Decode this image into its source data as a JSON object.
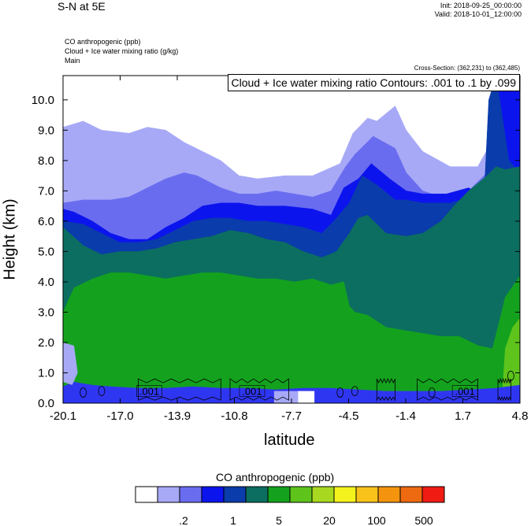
{
  "header": {
    "title": "S-N at 5E",
    "init": "Init: 2018-09-25_00:00:00",
    "valid": "Valid: 2018-10-01_12:00:00",
    "field1": "CO anthropogenic   (ppb)",
    "field2": "Cloud + Ice water mixing ratio   (g/kg)",
    "field3": "Main",
    "cross_section": "Cross-Section: (362,231) to (362,485)"
  },
  "chart_data": {
    "type": "heatmap",
    "contour_title": "Cloud + Ice water mixing ratio Contours: .001 to .1 by .099",
    "xlabel": "latitude",
    "ylabel": "Height (km)",
    "x_ticks": [
      "-20.1",
      "-17.0",
      "-13.9",
      "-10.8",
      "-7.7",
      "-4.5",
      "-1.4",
      "1.7",
      "4.8"
    ],
    "xlim": [
      -20.1,
      4.8
    ],
    "y_ticks": [
      "0.0",
      "1.0",
      "2.0",
      "3.0",
      "4.0",
      "5.0",
      "6.0",
      "7.0",
      "8.0",
      "9.0",
      "10.0"
    ],
    "ylim": [
      0,
      10.8
    ],
    "contour_labels": [
      {
        "x": -15.4,
        "y": 0.4,
        "text": ".001"
      },
      {
        "x": -9.8,
        "y": 0.4,
        "text": ".001"
      },
      {
        "x": 1.8,
        "y": 0.4,
        "text": ".001"
      }
    ],
    "levels_ppb": [
      {
        "name": "white",
        "color": "#ffffff",
        "top": [
          [
            -20.1,
            10.8
          ],
          [
            4.8,
            10.8
          ]
        ]
      },
      {
        "name": "pale-lavender",
        "color": "#a7a9f7",
        "top": [
          [
            -20.1,
            9.1
          ],
          [
            -19.0,
            9.3
          ],
          [
            -18.0,
            9.0
          ],
          [
            -16.5,
            8.9
          ],
          [
            -15.5,
            9.1
          ],
          [
            -14.5,
            9.0
          ],
          [
            -13.5,
            8.6
          ],
          [
            -12.5,
            8.3
          ],
          [
            -11.5,
            8.0
          ],
          [
            -10.5,
            7.5
          ],
          [
            -9.5,
            7.4
          ],
          [
            -8.0,
            7.5
          ],
          [
            -6.5,
            7.5
          ],
          [
            -5.0,
            7.9
          ],
          [
            -4.3,
            8.9
          ],
          [
            -3.5,
            9.4
          ],
          [
            -3.0,
            9.3
          ],
          [
            -2.0,
            9.8
          ],
          [
            -1.4,
            9.0
          ],
          [
            -0.5,
            8.3
          ],
          [
            1.0,
            7.8
          ],
          [
            2.5,
            7.8
          ],
          [
            3.6,
            9.0
          ],
          [
            4.0,
            10.8
          ],
          [
            4.8,
            10.8
          ]
        ]
      },
      {
        "name": "periwinkle",
        "color": "#6a6cf0",
        "top": [
          [
            -20.1,
            6.6
          ],
          [
            -19.0,
            6.7
          ],
          [
            -17.5,
            6.7
          ],
          [
            -16.5,
            6.8
          ],
          [
            -15.5,
            7.1
          ],
          [
            -14.5,
            7.4
          ],
          [
            -13.5,
            7.6
          ],
          [
            -12.8,
            7.5
          ],
          [
            -11.5,
            7.1
          ],
          [
            -10.5,
            6.9
          ],
          [
            -9.5,
            6.9
          ],
          [
            -8.5,
            7.0
          ],
          [
            -7.5,
            6.9
          ],
          [
            -6.5,
            6.8
          ],
          [
            -5.5,
            7.0
          ],
          [
            -4.7,
            7.8
          ],
          [
            -4.2,
            8.2
          ],
          [
            -3.2,
            8.8
          ],
          [
            -2.0,
            8.4
          ],
          [
            -1.4,
            7.6
          ],
          [
            -0.5,
            7.0
          ],
          [
            1.0,
            6.7
          ],
          [
            2.0,
            7.0
          ],
          [
            3.0,
            7.6
          ],
          [
            3.8,
            9.5
          ],
          [
            4.2,
            10.8
          ],
          [
            4.8,
            10.8
          ]
        ]
      },
      {
        "name": "blue",
        "color": "#0c14ee",
        "top": [
          [
            -20.1,
            6.4
          ],
          [
            -19.5,
            6.3
          ],
          [
            -18.5,
            6.0
          ],
          [
            -17.5,
            5.6
          ],
          [
            -16.5,
            5.4
          ],
          [
            -15.5,
            5.4
          ],
          [
            -14.5,
            5.8
          ],
          [
            -13.5,
            6.1
          ],
          [
            -12.5,
            6.5
          ],
          [
            -11.5,
            6.6
          ],
          [
            -10.5,
            6.6
          ],
          [
            -9.5,
            6.5
          ],
          [
            -8.0,
            6.5
          ],
          [
            -6.5,
            6.4
          ],
          [
            -5.5,
            6.2
          ],
          [
            -4.8,
            7.1
          ],
          [
            -4.0,
            7.4
          ],
          [
            -3.3,
            7.9
          ],
          [
            -2.3,
            7.4
          ],
          [
            -1.4,
            7.0
          ],
          [
            -0.5,
            6.9
          ],
          [
            0.8,
            6.9
          ],
          [
            2.0,
            7.1
          ],
          [
            2.6,
            6.9
          ],
          [
            3.0,
            7.3
          ],
          [
            3.3,
            10.6
          ],
          [
            3.7,
            10.8
          ],
          [
            4.8,
            10.8
          ]
        ]
      },
      {
        "name": "navy",
        "color": "#0a3cab",
        "top": [
          [
            -20.1,
            6.0
          ],
          [
            -19.0,
            5.9
          ],
          [
            -18.0,
            5.6
          ],
          [
            -17.0,
            5.3
          ],
          [
            -16.0,
            5.3
          ],
          [
            -15.0,
            5.4
          ],
          [
            -14.0,
            5.7
          ],
          [
            -13.0,
            6.0
          ],
          [
            -12.0,
            6.1
          ],
          [
            -11.0,
            6.1
          ],
          [
            -10.0,
            6.0
          ],
          [
            -9.0,
            6.0
          ],
          [
            -8.0,
            5.9
          ],
          [
            -7.0,
            5.8
          ],
          [
            -6.0,
            5.6
          ],
          [
            -5.2,
            6.1
          ],
          [
            -4.5,
            6.6
          ],
          [
            -3.8,
            7.5
          ],
          [
            -3.0,
            7.2
          ],
          [
            -2.0,
            6.7
          ],
          [
            -1.4,
            6.7
          ],
          [
            -0.5,
            6.6
          ],
          [
            1.0,
            6.6
          ],
          [
            2.2,
            6.8
          ],
          [
            2.6,
            6.2
          ],
          [
            2.9,
            7.5
          ],
          [
            3.1,
            10.0
          ],
          [
            3.5,
            10.8
          ],
          [
            3.8,
            9.6
          ],
          [
            4.2,
            8.0
          ],
          [
            4.8,
            7.6
          ]
        ]
      },
      {
        "name": "teal",
        "color": "#0c6e60",
        "top": [
          [
            -20.1,
            5.8
          ],
          [
            -19.0,
            5.2
          ],
          [
            -18.0,
            4.9
          ],
          [
            -17.0,
            5.0
          ],
          [
            -16.0,
            5.0
          ],
          [
            -15.0,
            5.1
          ],
          [
            -14.0,
            5.3
          ],
          [
            -13.0,
            5.4
          ],
          [
            -12.0,
            5.5
          ],
          [
            -11.0,
            5.7
          ],
          [
            -10.0,
            5.6
          ],
          [
            -9.0,
            5.4
          ],
          [
            -8.0,
            5.3
          ],
          [
            -7.0,
            5.0
          ],
          [
            -6.0,
            4.8
          ],
          [
            -5.2,
            5.0
          ],
          [
            -4.5,
            5.6
          ],
          [
            -4.0,
            6.1
          ],
          [
            -3.5,
            6.2
          ],
          [
            -2.5,
            5.6
          ],
          [
            -1.4,
            5.5
          ],
          [
            -0.5,
            5.6
          ],
          [
            0.5,
            6.0
          ],
          [
            1.2,
            6.5
          ],
          [
            2.0,
            7.0
          ],
          [
            2.6,
            7.3
          ],
          [
            3.0,
            7.5
          ],
          [
            3.5,
            7.8
          ],
          [
            4.0,
            7.7
          ],
          [
            4.8,
            7.8
          ]
        ]
      },
      {
        "name": "green",
        "color": "#14a21e",
        "top": [
          [
            -20.1,
            3.0
          ],
          [
            -19.5,
            3.8
          ],
          [
            -18.5,
            4.1
          ],
          [
            -17.5,
            4.3
          ],
          [
            -16.5,
            4.3
          ],
          [
            -15.5,
            4.2
          ],
          [
            -14.5,
            4.1
          ],
          [
            -13.5,
            4.2
          ],
          [
            -12.5,
            4.3
          ],
          [
            -11.5,
            4.3
          ],
          [
            -10.5,
            4.2
          ],
          [
            -9.5,
            4.1
          ],
          [
            -8.5,
            4.1
          ],
          [
            -7.5,
            4.0
          ],
          [
            -6.5,
            4.1
          ],
          [
            -5.5,
            3.9
          ],
          [
            -4.8,
            4.0
          ],
          [
            -4.5,
            3.2
          ],
          [
            -4.2,
            3.0
          ],
          [
            -3.5,
            2.9
          ],
          [
            -2.5,
            2.5
          ],
          [
            -1.5,
            2.4
          ],
          [
            -0.5,
            2.3
          ],
          [
            0.5,
            2.2
          ],
          [
            1.5,
            2.2
          ],
          [
            2.5,
            1.9
          ],
          [
            3.3,
            1.8
          ],
          [
            3.6,
            2.5
          ],
          [
            4.0,
            3.5
          ],
          [
            4.8,
            4.2
          ]
        ]
      },
      {
        "name": "lime-green",
        "color": "#5ec41c",
        "top": [
          [
            -20.1,
            0.0
          ],
          [
            3.8,
            0.0
          ],
          [
            4.0,
            1.8
          ],
          [
            4.4,
            2.5
          ],
          [
            4.8,
            2.8
          ]
        ]
      }
    ]
  }
}
